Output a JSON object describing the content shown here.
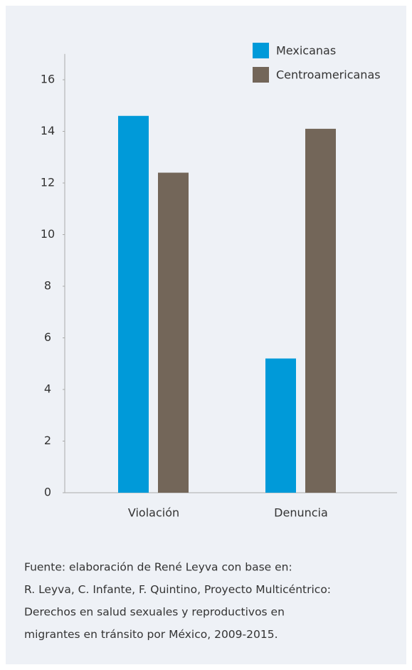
{
  "chart_data": {
    "type": "bar",
    "categories": [
      "Violación",
      "Denuncia"
    ],
    "series": [
      {
        "name": "Mexicanas",
        "color": "#009ad9",
        "values": [
          14.6,
          5.2
        ]
      },
      {
        "name": "Centroamericanas",
        "color": "#736659",
        "values": [
          12.4,
          14.1
        ]
      }
    ],
    "ylim": [
      0,
      17
    ],
    "yticks": [
      0,
      2,
      4,
      6,
      8,
      10,
      12,
      14,
      16
    ],
    "legend": "top-right",
    "source": [
      "Fuente: elaboración de René Leyva con base en:",
      "R. Leyva, C. Infante, F. Quintino, Proyecto Multicéntrico:",
      "Derechos en salud sexuales y reproductivos en",
      "migrantes en tránsito por México, 2009-2015."
    ]
  }
}
